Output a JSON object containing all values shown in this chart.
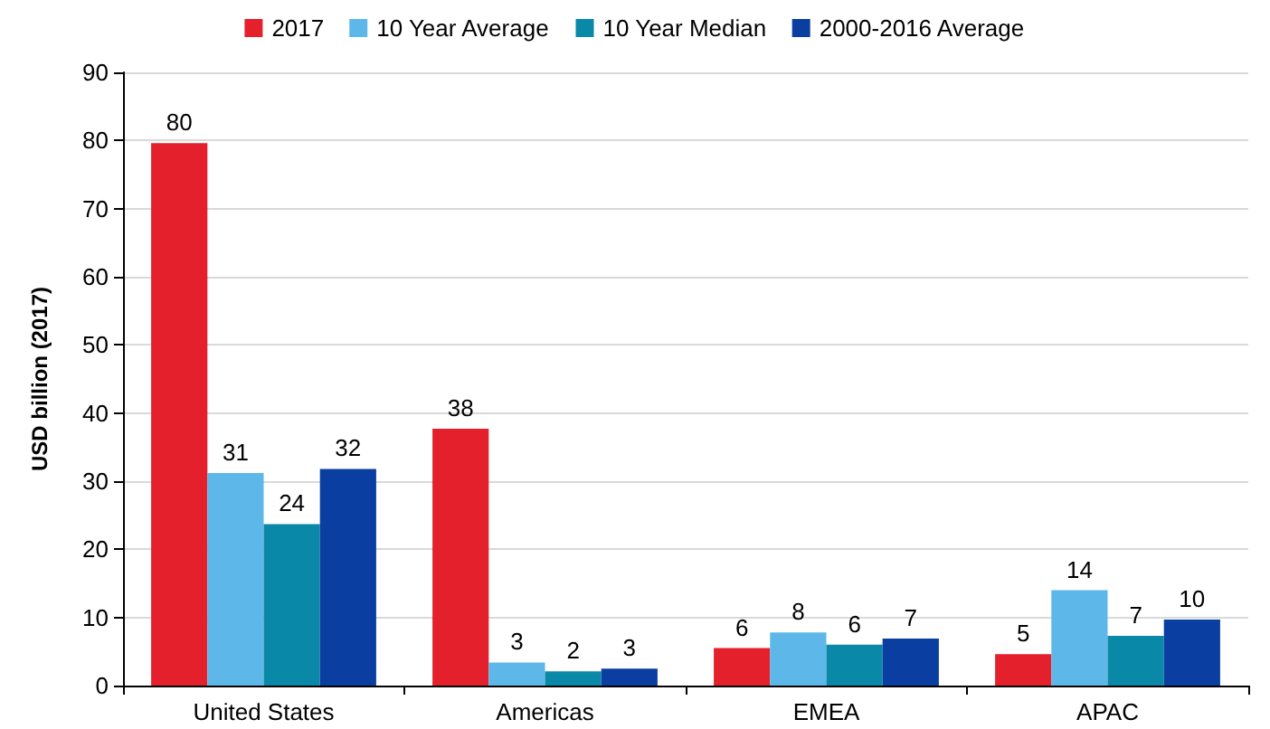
{
  "chart_data": {
    "type": "bar",
    "ylabel": "USD billion (2017)",
    "categories": [
      "United States",
      "Americas",
      "EMEA",
      "APAC"
    ],
    "series": [
      {
        "name": "2017",
        "color": "#e3202b",
        "values": [
          79.6,
          37.7,
          5.5,
          4.6
        ],
        "value_labels": [
          "80",
          "38",
          "6",
          "5"
        ]
      },
      {
        "name": "10 Year Average",
        "color": "#5db7e8",
        "values": [
          31.2,
          3.4,
          7.8,
          14.0
        ],
        "value_labels": [
          "31",
          "3",
          "8",
          "14"
        ]
      },
      {
        "name": "10 Year Median",
        "color": "#0a88a8",
        "values": [
          23.7,
          2.1,
          6.0,
          7.3
        ],
        "value_labels": [
          "24",
          "2",
          "6",
          "7"
        ]
      },
      {
        "name": "2000-2016 Average",
        "color": "#0a3ea0",
        "values": [
          31.8,
          2.5,
          6.9,
          9.7
        ],
        "value_labels": [
          "32",
          "3",
          "7",
          "10"
        ]
      }
    ],
    "ylim": [
      0,
      90
    ],
    "yticks": [
      0,
      10,
      20,
      30,
      40,
      50,
      60,
      70,
      80,
      90
    ],
    "grid": "y",
    "legend": "top"
  }
}
